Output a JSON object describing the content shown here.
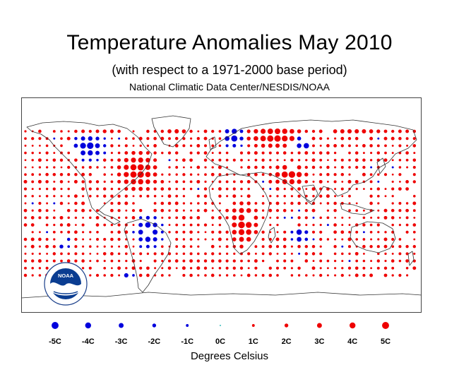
{
  "header": {
    "title": "Temperature Anomalies May 2010",
    "subtitle": "(with respect to a 1971-2000 base period)",
    "source": "National Climatic Data Center/NESDIS/NOAA"
  },
  "logo": {
    "name": "NOAA",
    "icon": "noaa-seal-icon",
    "ring_text": "NATIONAL OCEANIC AND ATMOSPHERIC ADMINISTRATION · U.S. DEPARTMENT OF COMMERCE"
  },
  "legend": {
    "unit_label": "Degrees Celsius",
    "items": [
      {
        "label": "-5C",
        "value": -5,
        "color": "#0000dd"
      },
      {
        "label": "-4C",
        "value": -4,
        "color": "#0000dd"
      },
      {
        "label": "-3C",
        "value": -3,
        "color": "#0000dd"
      },
      {
        "label": "-2C",
        "value": -2,
        "color": "#0000dd"
      },
      {
        "label": "-1C",
        "value": -1,
        "color": "#0000dd"
      },
      {
        "label": "0C",
        "value": 0,
        "color": "#00aaaa"
      },
      {
        "label": "1C",
        "value": 1,
        "color": "#ee0000"
      },
      {
        "label": "2C",
        "value": 2,
        "color": "#ee0000"
      },
      {
        "label": "3C",
        "value": 3,
        "color": "#ee0000"
      },
      {
        "label": "4C",
        "value": 4,
        "color": "#ee0000"
      },
      {
        "label": "5C",
        "value": 5,
        "color": "#ee0000"
      }
    ]
  },
  "colors": {
    "warm": "#ee0000",
    "cold": "#0000dd",
    "neutral": "#00aaaa",
    "coastline": "#333333"
  }
}
